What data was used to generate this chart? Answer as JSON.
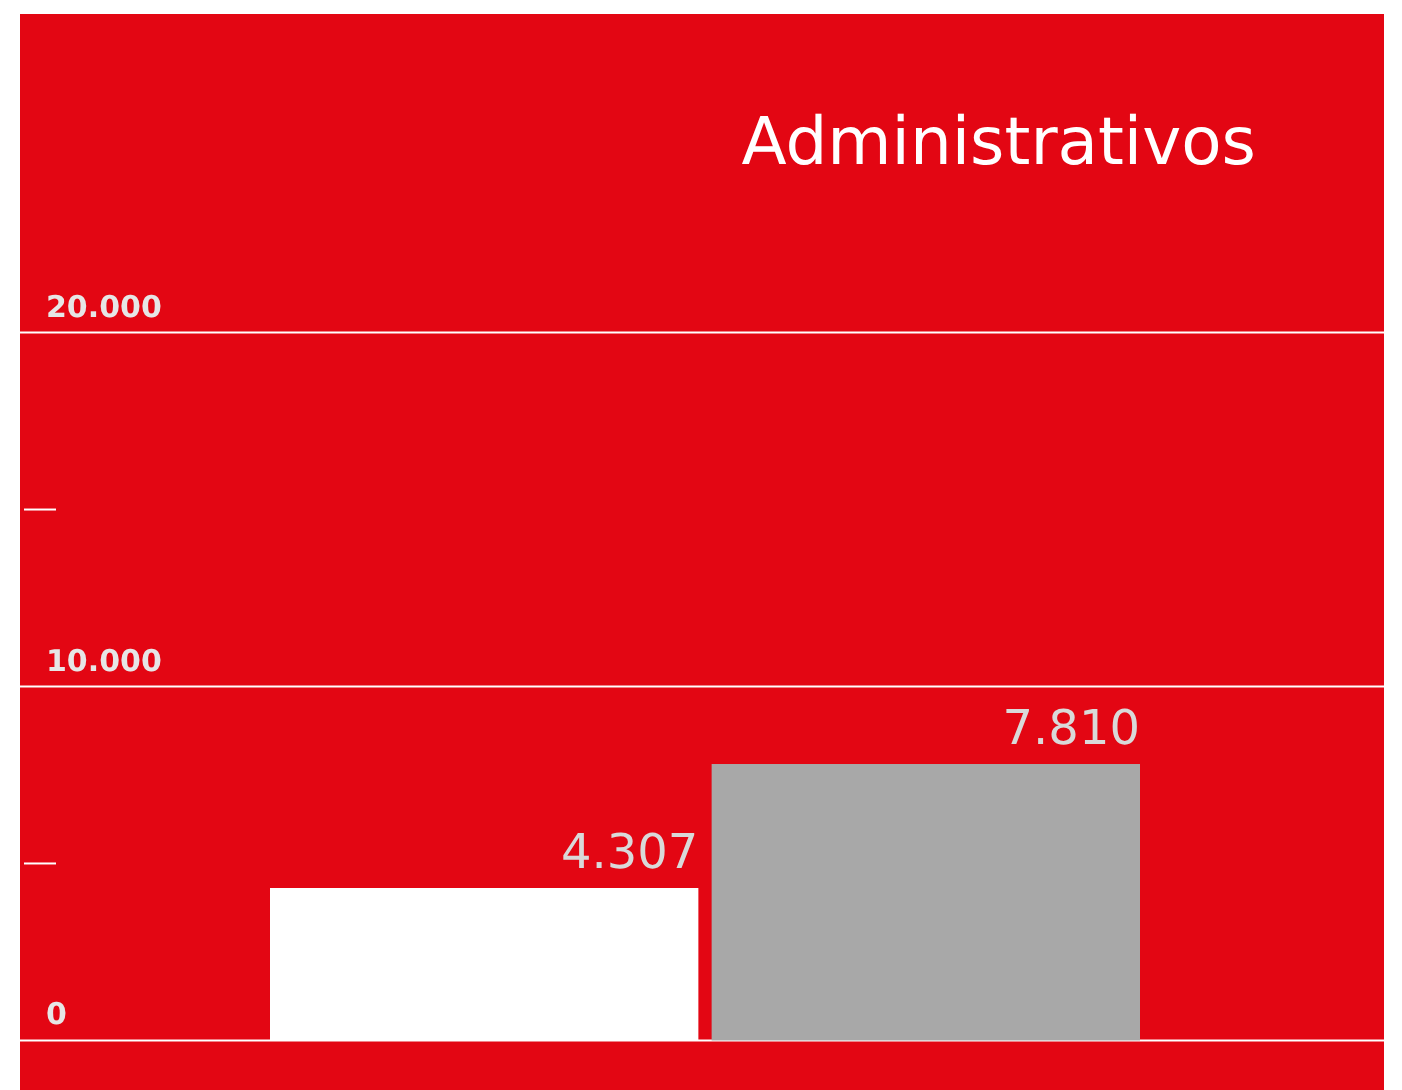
{
  "chart_data": {
    "type": "bar",
    "title": "Administrativos",
    "categories": [
      null,
      null
    ],
    "values": [
      4307,
      7810
    ],
    "colors": [
      "#ffffff",
      "#a8a8a8"
    ],
    "value_labels": [
      "4.307",
      "7.810"
    ],
    "ylim": [
      -1400,
      29000
    ],
    "yticks": [
      {
        "value": 0,
        "label": "0"
      },
      {
        "value": 5000,
        "label": null
      },
      {
        "value": 10000,
        "label": "10.000"
      },
      {
        "value": 15000,
        "label": null
      },
      {
        "value": 20000,
        "label": "20.000"
      }
    ],
    "grid": "y",
    "tick_labels": "y"
  }
}
